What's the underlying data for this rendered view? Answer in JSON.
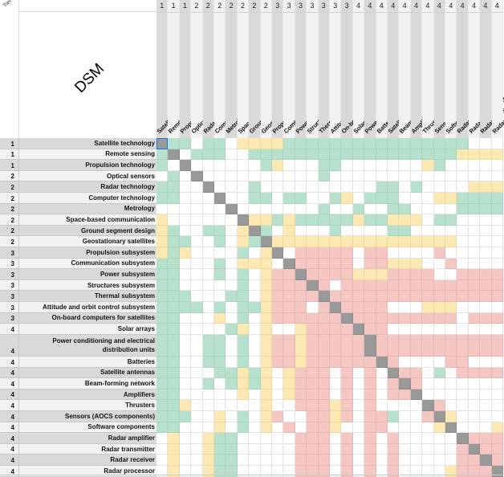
{
  "sheet": {
    "tier_header": "Tier",
    "title": "DSM",
    "legend_codes": {
      "G": "green",
      "Y": "yellow",
      "R": "red",
      "D": "diagonal",
      ".": "empty"
    },
    "colors": {
      "G": "#b7e1cd",
      "Y": "#fce8b2",
      "R": "#f4c7c3",
      "D": "#999999",
      "empty": "#ffffff"
    }
  },
  "items": [
    {
      "tier": "1",
      "name": "Satellite technology"
    },
    {
      "tier": "1",
      "name": "Remote sensing"
    },
    {
      "tier": "1",
      "name": "Propulsion technology"
    },
    {
      "tier": "2",
      "name": "Optical sensors"
    },
    {
      "tier": "2",
      "name": "Radar technology"
    },
    {
      "tier": "2",
      "name": "Computer technology"
    },
    {
      "tier": "2",
      "name": "Metrology"
    },
    {
      "tier": "2",
      "name": "Space-based communication"
    },
    {
      "tier": "2",
      "name": "Ground segment design"
    },
    {
      "tier": "2",
      "name": "Geostationary satellites"
    },
    {
      "tier": "3",
      "name": "Propulsion subsystem"
    },
    {
      "tier": "3",
      "name": "Communication subsystem"
    },
    {
      "tier": "3",
      "name": "Power subsystem"
    },
    {
      "tier": "3",
      "name": "Structures subsystem"
    },
    {
      "tier": "3",
      "name": "Thermal subsystem"
    },
    {
      "tier": "3",
      "name": "Attitude and orbit control subsystem"
    },
    {
      "tier": "3",
      "name": "On-board computers for satellites"
    },
    {
      "tier": "4",
      "name": "Solar arrays"
    },
    {
      "tier": "4",
      "name": "Power conditioning and electrical distribution units"
    },
    {
      "tier": "4",
      "name": "Batteries"
    },
    {
      "tier": "4",
      "name": "Satellite antennas"
    },
    {
      "tier": "4",
      "name": "Beam-forming network"
    },
    {
      "tier": "4",
      "name": "Amplifiers"
    },
    {
      "tier": "4",
      "name": "Thrusters"
    },
    {
      "tier": "4",
      "name": "Sensors (AOCS components)"
    },
    {
      "tier": "4",
      "name": "Software components"
    },
    {
      "tier": "4",
      "name": "Radar amplifier"
    },
    {
      "tier": "4",
      "name": "Radar transmitter"
    },
    {
      "tier": "4",
      "name": "Radar receiver"
    },
    {
      "tier": "4",
      "name": "Radar processor"
    }
  ],
  "matrix": [
    "DGG.GG.YYYYGGGGGGGGGGGGGGGG....",
    "GD.GGG..GGGGGGGGGGGGGGGGGGYYYY",
    "G.D......GY...GG.......YG.....",
    ".G.D..........G...............",
    "GG..D...G..........GG.G....YYYY",
    "GG...D..GG.GG..GY.GGG...YYGGGG",
    "......D.......G..G..GG....GGGG",
    "Y......DYYGYGGGGGYGGYYY.GG....",
    "YG..GG.YDG.Y...G....GG........",
    "YGG..G.YGDYYYYYYYYYYYYYYYY....",
    "YGY....G.YD.RRRRR.RR....R.....",
    "GG...G.YYY.DRRRRR.RRYYY..R....",
    "GG...G.G.YRRDRRRRYYYRRRR..RRRR",
    "GG.....G.YRRRDR.RRRRRRRRRRRRRR",
    "GGG...GG.YRRRRDRRRRRRRRRRRRRRR",
    "GGGG.G.GGYRRR.RDRRRR...YYY....",
    "GG...Y.G.YRRRRRRDRRRRRRRRR.RRRR",
    "GG....GY.Y..YRRRRDRR..........",
    "GG..GG.G.YRRYRRRRRDRRRRRRRRRRR",
    "GG..GG.G.YRRYRRRRRRDR....RR....",
    "GG...GGYGY.YRRR.R.R.DRR.G.RRRR",
    "GG..G.GYGY.YRRR.R.R.RDR.......",
    "GG.....Y.Y.YRRR.R.R.RRD.......",
    "GGY......Y..RRRYR.R....DR.....",
    "GGG..Y.G.YR..RRYR.RRG..RDY....",
    "GG...Y.G.Y.R.RRY..RR....YD...Y",
    ".Y..YGG.....RRR.R.R.R.....DRRR",
    ".Y..YGG.....RRR.R.R.R.....RDRR",
    ".Y..YGG.....RRR.R.R.R.....RRDR",
    ".Y..YGG.....RRR.R.R.R....YRRRD"
  ],
  "selected_cell": {
    "row": 0,
    "col": 0
  }
}
